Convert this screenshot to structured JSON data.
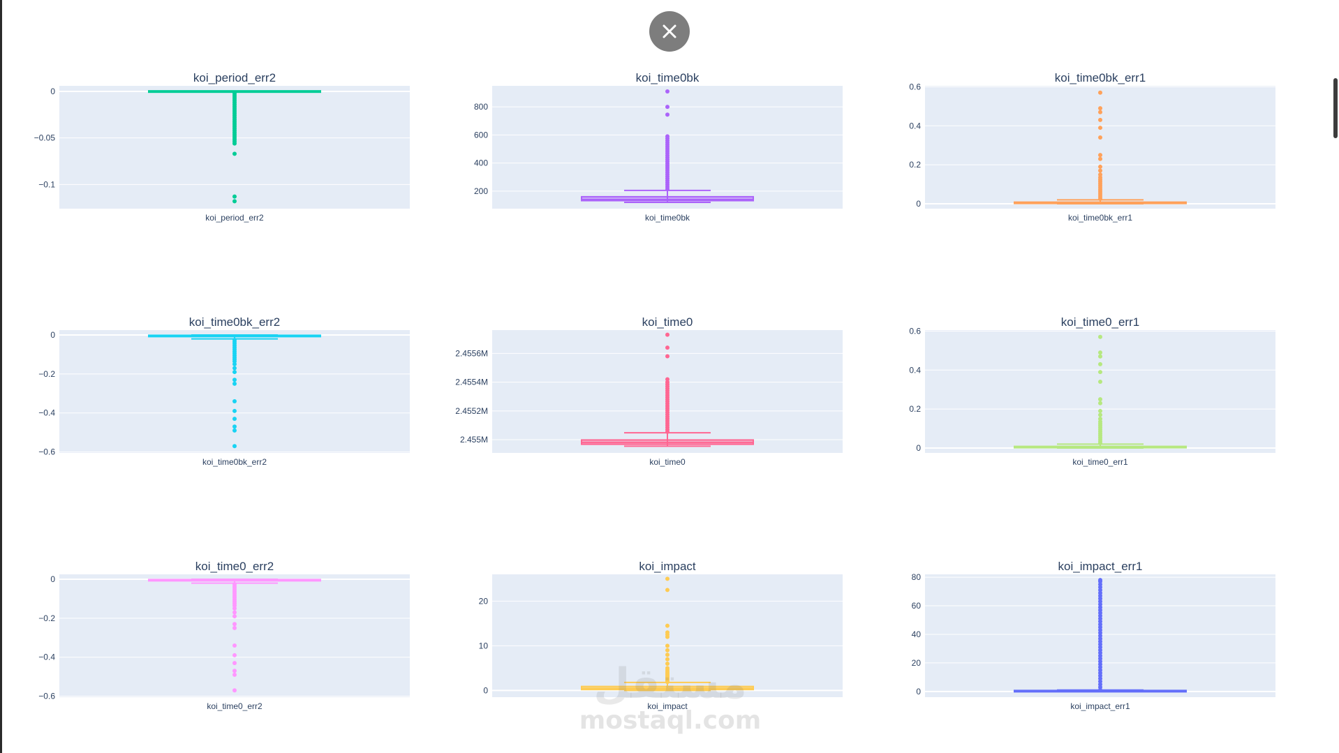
{
  "close_icon": "close-icon",
  "watermark": {
    "arabic": "مستقل",
    "latin": "mostaql.com"
  },
  "chart_data": [
    {
      "type": "box",
      "title": "koi_period_err2",
      "xlabel": "koi_period_err2",
      "color": "#00cc96",
      "ylim": [
        -0.126,
        0.006
      ],
      "yticks": [
        0,
        -0.05,
        -0.1
      ],
      "yticklabels": [
        "0",
        "−0.05",
        "−0.1"
      ],
      "box": {
        "min": -0.0003,
        "q1": -0.0002,
        "median": -5e-05,
        "q3": -2e-05,
        "max": 0
      },
      "outliers": [
        -0.002,
        -0.004,
        -0.006,
        -0.008,
        -0.01,
        -0.012,
        -0.014,
        -0.016,
        -0.018,
        -0.02,
        -0.022,
        -0.024,
        -0.026,
        -0.028,
        -0.03,
        -0.032,
        -0.034,
        -0.036,
        -0.038,
        -0.04,
        -0.042,
        -0.044,
        -0.046,
        -0.048,
        -0.05,
        -0.052,
        -0.054,
        -0.056,
        -0.067,
        -0.113,
        -0.118
      ]
    },
    {
      "type": "box",
      "title": "koi_time0bk",
      "xlabel": "koi_time0bk",
      "color": "#ab63fa",
      "ylim": [
        75,
        950
      ],
      "yticks": [
        200,
        400,
        600,
        800
      ],
      "yticklabels": [
        "200",
        "400",
        "600",
        "800"
      ],
      "box": {
        "min": 120,
        "q1": 132,
        "median": 140,
        "q3": 160,
        "max": 205
      },
      "outliers": [
        215,
        230,
        245,
        260,
        275,
        290,
        305,
        320,
        335,
        350,
        365,
        380,
        395,
        410,
        425,
        440,
        455,
        470,
        485,
        500,
        515,
        530,
        545,
        560,
        575,
        590,
        745,
        800,
        910
      ]
    },
    {
      "type": "box",
      "title": "koi_time0bk_err1",
      "xlabel": "koi_time0bk_err1",
      "color": "#ffa15a",
      "ylim": [
        -0.025,
        0.605
      ],
      "yticks": [
        0,
        0.2,
        0.4,
        0.6
      ],
      "yticklabels": [
        "0",
        "0.2",
        "0.4",
        "0.6"
      ],
      "box": {
        "min": 0,
        "q1": 0.002,
        "median": 0.004,
        "q3": 0.008,
        "max": 0.02
      },
      "outliers": [
        0.025,
        0.035,
        0.045,
        0.055,
        0.065,
        0.075,
        0.085,
        0.095,
        0.105,
        0.115,
        0.125,
        0.135,
        0.15,
        0.17,
        0.19,
        0.23,
        0.25,
        0.34,
        0.39,
        0.43,
        0.47,
        0.49,
        0.57
      ]
    },
    {
      "type": "box",
      "title": "koi_time0bk_err2",
      "xlabel": "koi_time0bk_err2",
      "color": "#19d3f3",
      "ylim": [
        -0.605,
        0.025
      ],
      "yticks": [
        0,
        -0.2,
        -0.4,
        -0.6
      ],
      "yticklabels": [
        "0",
        "−0.2",
        "−0.4",
        "−0.6"
      ],
      "box": {
        "min": -0.02,
        "q1": -0.008,
        "median": -0.004,
        "q3": -0.002,
        "max": 0
      },
      "outliers": [
        -0.025,
        -0.035,
        -0.045,
        -0.055,
        -0.065,
        -0.075,
        -0.085,
        -0.095,
        -0.105,
        -0.115,
        -0.125,
        -0.135,
        -0.15,
        -0.17,
        -0.19,
        -0.23,
        -0.25,
        -0.34,
        -0.39,
        -0.43,
        -0.47,
        -0.49,
        -0.57
      ]
    },
    {
      "type": "box",
      "title": "koi_time0",
      "xlabel": "koi_time0",
      "color": "#ff6692",
      "ylim": [
        2454908,
        2455762
      ],
      "yticks": [
        2455000,
        2455200,
        2455400,
        2455600
      ],
      "yticklabels": [
        "2.455M",
        "2.4552M",
        "2.4554M",
        "2.4556M"
      ],
      "box": {
        "min": 2454955,
        "q1": 2454968,
        "median": 2454980,
        "q3": 2454998,
        "max": 2455048
      },
      "outliers": [
        2455055,
        2455070,
        2455085,
        2455100,
        2455115,
        2455130,
        2455145,
        2455160,
        2455175,
        2455190,
        2455205,
        2455220,
        2455235,
        2455250,
        2455265,
        2455280,
        2455295,
        2455310,
        2455325,
        2455340,
        2455355,
        2455370,
        2455385,
        2455400,
        2455420,
        2455580,
        2455640,
        2455730
      ]
    },
    {
      "type": "box",
      "title": "koi_time0_err1",
      "xlabel": "koi_time0_err1",
      "color": "#b6e880",
      "ylim": [
        -0.025,
        0.605
      ],
      "yticks": [
        0,
        0.2,
        0.4,
        0.6
      ],
      "yticklabels": [
        "0",
        "0.2",
        "0.4",
        "0.6"
      ],
      "box": {
        "min": 0,
        "q1": 0.002,
        "median": 0.004,
        "q3": 0.008,
        "max": 0.02
      },
      "outliers": [
        0.025,
        0.035,
        0.045,
        0.055,
        0.065,
        0.075,
        0.085,
        0.095,
        0.105,
        0.115,
        0.125,
        0.135,
        0.15,
        0.17,
        0.19,
        0.23,
        0.25,
        0.34,
        0.39,
        0.43,
        0.47,
        0.49,
        0.57
      ]
    },
    {
      "type": "box",
      "title": "koi_time0_err2",
      "xlabel": "koi_time0_err2",
      "color": "#ff97ff",
      "ylim": [
        -0.605,
        0.025
      ],
      "yticks": [
        0,
        -0.2,
        -0.4,
        -0.6
      ],
      "yticklabels": [
        "0",
        "−0.2",
        "−0.4",
        "−0.6"
      ],
      "box": {
        "min": -0.02,
        "q1": -0.008,
        "median": -0.004,
        "q3": -0.002,
        "max": 0
      },
      "outliers": [
        -0.025,
        -0.035,
        -0.045,
        -0.055,
        -0.065,
        -0.075,
        -0.085,
        -0.095,
        -0.105,
        -0.115,
        -0.125,
        -0.135,
        -0.15,
        -0.17,
        -0.19,
        -0.23,
        -0.25,
        -0.34,
        -0.39,
        -0.43,
        -0.47,
        -0.49,
        -0.57
      ]
    },
    {
      "type": "box",
      "title": "koi_impact",
      "xlabel": "koi_impact",
      "color": "#fecb52",
      "ylim": [
        -1.5,
        26
      ],
      "yticks": [
        0,
        10,
        20
      ],
      "yticklabels": [
        "0",
        "10",
        "20"
      ],
      "box": {
        "min": 0,
        "q1": 0.2,
        "median": 0.5,
        "q3": 0.9,
        "max": 1.8
      },
      "outliers": [
        1.9,
        2.1,
        2.4,
        2.7,
        3.0,
        3.3,
        3.6,
        3.9,
        4.2,
        4.6,
        5.0,
        6.0,
        7.0,
        8.0,
        9.0,
        10.0,
        12.0,
        12.5,
        13.0,
        14.5,
        22.5,
        25.0
      ]
    },
    {
      "type": "box",
      "title": "koi_impact_err1",
      "xlabel": "koi_impact_err1",
      "color": "#636efa",
      "ylim": [
        -4,
        82
      ],
      "yticks": [
        0,
        20,
        40,
        60,
        80
      ],
      "yticklabels": [
        "0",
        "20",
        "40",
        "60",
        "80"
      ],
      "box": {
        "min": 0,
        "q1": 0.05,
        "median": 0.15,
        "q3": 0.4,
        "max": 1.0
      },
      "outliers": [
        1,
        3,
        5,
        7,
        9,
        11,
        13,
        15,
        17,
        19,
        21,
        23,
        25,
        27,
        29,
        31,
        33,
        35,
        37,
        39,
        41,
        43,
        45,
        47,
        49,
        51,
        53,
        55,
        57,
        59,
        61,
        63,
        65,
        67,
        69,
        71,
        73,
        75,
        77,
        78
      ]
    }
  ]
}
